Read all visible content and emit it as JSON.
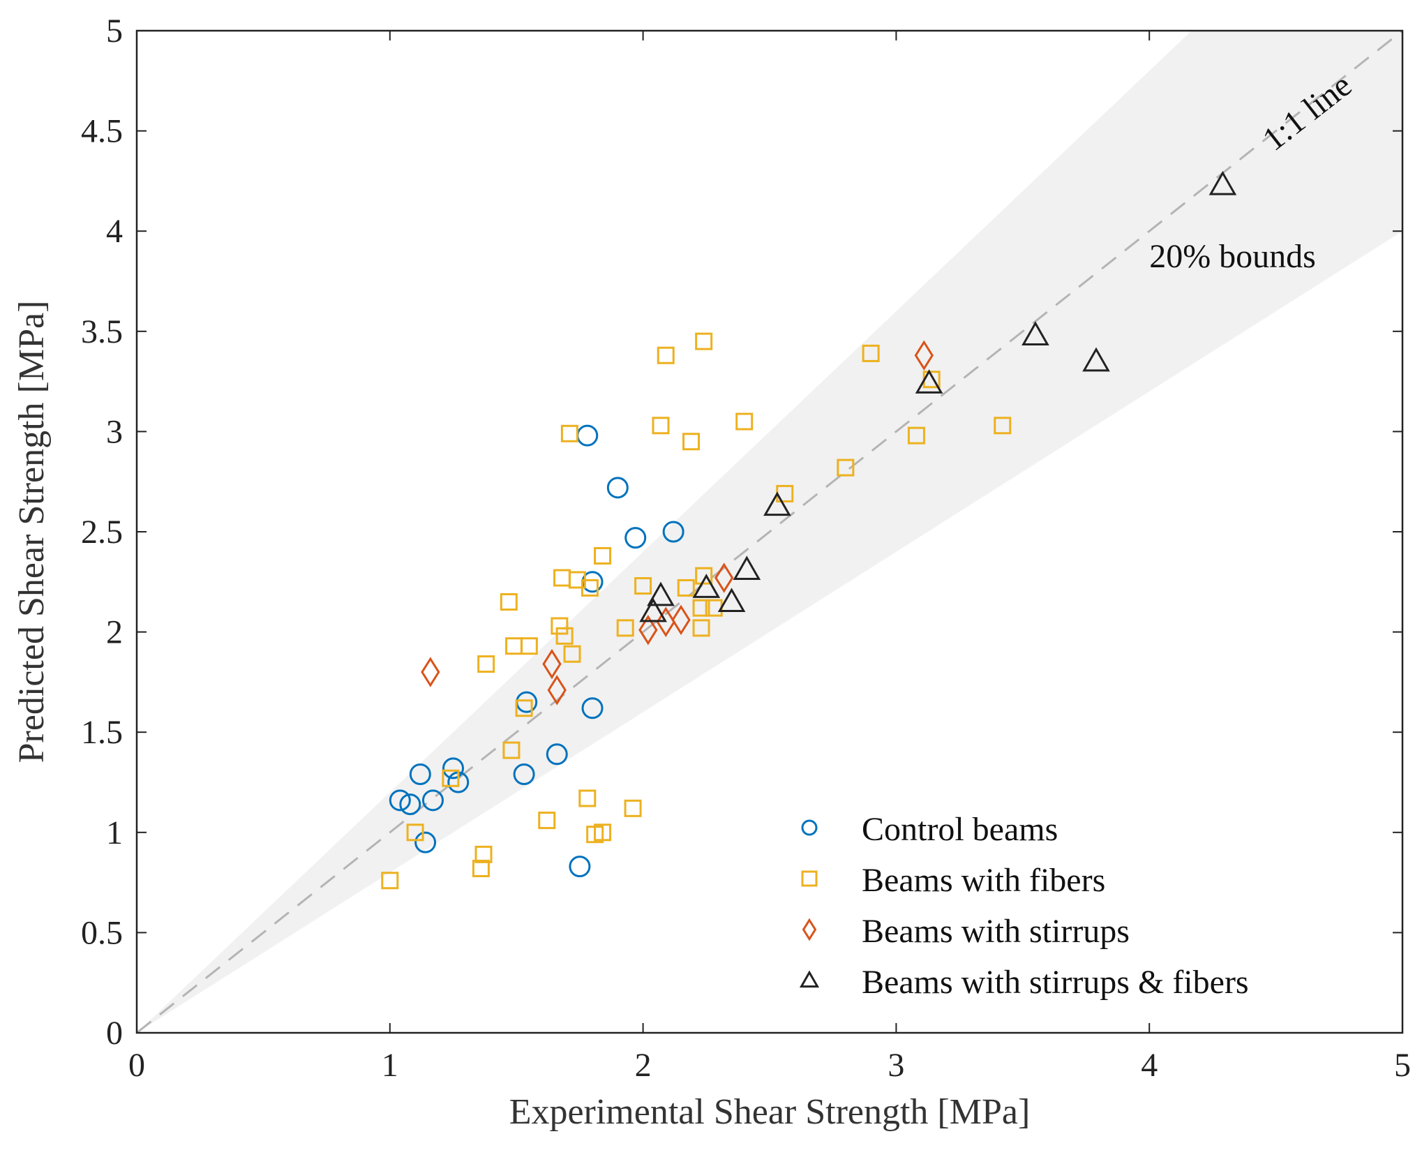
{
  "chart_data": {
    "type": "scatter",
    "title": "",
    "xlabel": "Experimental Shear Strength  [MPa]",
    "ylabel": "Predicted Shear Strength  [MPa]",
    "xlim": [
      0,
      5
    ],
    "ylim": [
      0,
      5
    ],
    "x_ticks": [
      "0",
      "1",
      "2",
      "3",
      "4",
      "5"
    ],
    "y_ticks": [
      "0",
      "0.5",
      "1",
      "1.5",
      "2",
      "2.5",
      "3",
      "3.5",
      "4",
      "4.5",
      "5"
    ],
    "grid": false,
    "legend_position": "bottom-right",
    "reference_line": {
      "label": "1:1 line",
      "slope": 1
    },
    "bounds": {
      "label": "20% bounds",
      "lower_factor": 0.8,
      "upper_factor": 1.2
    },
    "series": [
      {
        "name": "Control beams",
        "marker": "circle",
        "color": "#0072BD",
        "points": [
          [
            1.04,
            1.16
          ],
          [
            1.08,
            1.14
          ],
          [
            1.12,
            1.29
          ],
          [
            1.14,
            0.95
          ],
          [
            1.17,
            1.16
          ],
          [
            1.25,
            1.32
          ],
          [
            1.27,
            1.25
          ],
          [
            1.53,
            1.29
          ],
          [
            1.54,
            1.65
          ],
          [
            1.66,
            1.39
          ],
          [
            1.75,
            0.83
          ],
          [
            1.78,
            2.98
          ],
          [
            1.8,
            1.62
          ],
          [
            1.8,
            2.25
          ],
          [
            1.9,
            2.72
          ],
          [
            1.97,
            2.47
          ],
          [
            2.12,
            2.5
          ]
        ]
      },
      {
        "name": "Beams with fibers",
        "marker": "square",
        "color": "#EDB120",
        "points": [
          [
            1.0,
            0.76
          ],
          [
            1.1,
            1.0
          ],
          [
            1.24,
            1.27
          ],
          [
            1.36,
            0.82
          ],
          [
            1.37,
            0.89
          ],
          [
            1.38,
            1.84
          ],
          [
            1.47,
            2.15
          ],
          [
            1.48,
            1.41
          ],
          [
            1.49,
            1.93
          ],
          [
            1.53,
            1.62
          ],
          [
            1.55,
            1.93
          ],
          [
            1.62,
            1.06
          ],
          [
            1.67,
            2.03
          ],
          [
            1.68,
            2.27
          ],
          [
            1.69,
            1.98
          ],
          [
            1.71,
            2.99
          ],
          [
            1.72,
            1.89
          ],
          [
            1.74,
            2.26
          ],
          [
            1.78,
            1.17
          ],
          [
            1.79,
            2.22
          ],
          [
            1.81,
            0.99
          ],
          [
            1.84,
            1.0
          ],
          [
            1.84,
            2.38
          ],
          [
            1.93,
            2.02
          ],
          [
            1.96,
            1.12
          ],
          [
            2.0,
            2.23
          ],
          [
            2.07,
            3.03
          ],
          [
            2.09,
            3.38
          ],
          [
            2.17,
            2.22
          ],
          [
            2.19,
            2.95
          ],
          [
            2.23,
            2.02
          ],
          [
            2.23,
            2.12
          ],
          [
            2.24,
            2.28
          ],
          [
            2.24,
            3.45
          ],
          [
            2.28,
            2.12
          ],
          [
            2.4,
            3.05
          ],
          [
            2.56,
            2.69
          ],
          [
            2.8,
            2.82
          ],
          [
            2.9,
            3.39
          ],
          [
            3.08,
            2.98
          ],
          [
            3.14,
            3.26
          ],
          [
            3.42,
            3.03
          ]
        ]
      },
      {
        "name": "Beams with stirrups",
        "marker": "diamond",
        "color": "#D95319",
        "points": [
          [
            1.16,
            1.8
          ],
          [
            1.64,
            1.84
          ],
          [
            1.66,
            1.71
          ],
          [
            2.02,
            2.01
          ],
          [
            2.09,
            2.05
          ],
          [
            2.15,
            2.06
          ],
          [
            2.32,
            2.27
          ],
          [
            3.11,
            3.38
          ]
        ]
      },
      {
        "name": "Beams with stirrups & fibers",
        "marker": "triangle",
        "color": "#222222",
        "points": [
          [
            2.04,
            2.1
          ],
          [
            2.07,
            2.18
          ],
          [
            2.25,
            2.22
          ],
          [
            2.35,
            2.15
          ],
          [
            2.41,
            2.31
          ],
          [
            2.53,
            2.63
          ],
          [
            3.13,
            3.24
          ],
          [
            3.55,
            3.48
          ],
          [
            3.79,
            3.35
          ],
          [
            4.29,
            4.23
          ]
        ]
      }
    ]
  }
}
